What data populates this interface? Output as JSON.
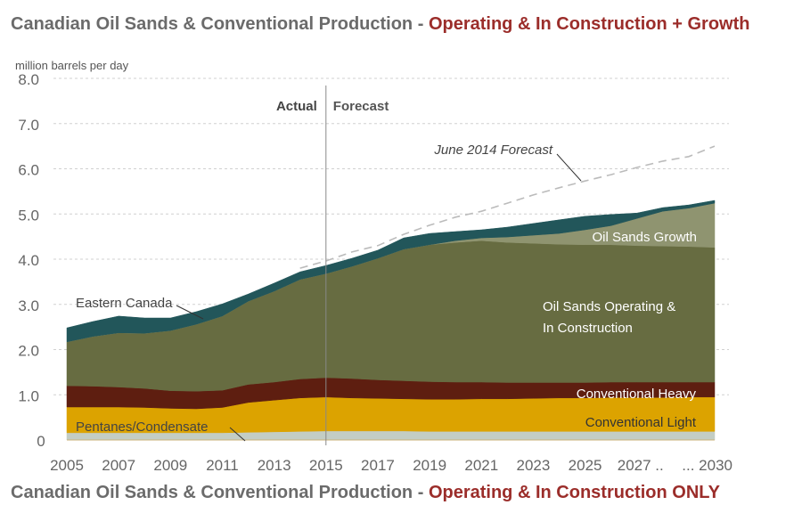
{
  "titles": {
    "top": {
      "prefix": "Canadian Oil Sands & Conventional Production - ",
      "highlight": "Operating & In Construction + Growth"
    },
    "bottom": {
      "prefix": "Canadian Oil Sands & Conventional Production - ",
      "highlight": "Operating & In Construction ONLY"
    }
  },
  "chart_data": {
    "type": "area",
    "stacked": true,
    "title": "Canadian Oil Sands & Conventional Production - Operating & In Construction + Growth",
    "ylabel": "million barrels per day",
    "xlabel": "",
    "ylim": [
      0,
      8
    ],
    "yticks": [
      "0",
      "1.0",
      "2.0",
      "3.0",
      "4.0",
      "5.0",
      "6.0",
      "7.0",
      "8.0"
    ],
    "xtick_labels": [
      "2005",
      "2007",
      "2009",
      "2011",
      "2013",
      "2015",
      "2017",
      "2019",
      "2021",
      "2023",
      "2025",
      "2027 ..",
      "... 2030"
    ],
    "grid": "horizontal dashed",
    "divider": {
      "year": 2015,
      "left_label": "Actual",
      "right_label": "Forecast"
    },
    "x": [
      2005,
      2006,
      2007,
      2008,
      2009,
      2010,
      2011,
      2012,
      2013,
      2014,
      2015,
      2016,
      2017,
      2018,
      2019,
      2020,
      2021,
      2022,
      2023,
      2024,
      2025,
      2026,
      2027,
      2028,
      2029,
      2030
    ],
    "series": [
      {
        "name": "Pentanes/Condensate",
        "color": "#c3cdc4",
        "values": [
          0.16,
          0.16,
          0.16,
          0.16,
          0.16,
          0.16,
          0.16,
          0.17,
          0.18,
          0.19,
          0.2,
          0.2,
          0.2,
          0.2,
          0.19,
          0.19,
          0.19,
          0.19,
          0.19,
          0.19,
          0.19,
          0.19,
          0.19,
          0.19,
          0.19,
          0.19
        ]
      },
      {
        "name": "Conventional Light",
        "color": "#dca300",
        "values": [
          0.57,
          0.57,
          0.57,
          0.56,
          0.54,
          0.53,
          0.56,
          0.66,
          0.7,
          0.74,
          0.75,
          0.73,
          0.72,
          0.71,
          0.71,
          0.71,
          0.72,
          0.72,
          0.73,
          0.74,
          0.74,
          0.75,
          0.75,
          0.75,
          0.76,
          0.76
        ]
      },
      {
        "name": "Conventional Heavy",
        "color": "#5e1e10",
        "values": [
          0.47,
          0.46,
          0.44,
          0.42,
          0.39,
          0.39,
          0.38,
          0.4,
          0.4,
          0.42,
          0.43,
          0.43,
          0.41,
          0.4,
          0.39,
          0.38,
          0.37,
          0.36,
          0.35,
          0.34,
          0.34,
          0.34,
          0.34,
          0.34,
          0.33,
          0.33
        ]
      },
      {
        "name": "Oil Sands Operating & In Construction",
        "color": "#676c41",
        "values": [
          0.97,
          1.1,
          1.2,
          1.22,
          1.33,
          1.48,
          1.64,
          1.84,
          2.01,
          2.2,
          2.3,
          2.48,
          2.69,
          2.91,
          3.03,
          3.09,
          3.13,
          3.1,
          3.08,
          3.06,
          3.05,
          3.04,
          3.02,
          3.01,
          3.0,
          2.98
        ]
      },
      {
        "name": "Oil Sands Growth",
        "color": "#8f9470",
        "values": [
          0,
          0,
          0,
          0,
          0,
          0,
          0,
          0,
          0,
          0,
          0,
          0,
          0,
          0,
          0,
          0.04,
          0.06,
          0.12,
          0.18,
          0.24,
          0.33,
          0.42,
          0.6,
          0.77,
          0.85,
          0.98
        ]
      },
      {
        "name": "Eastern Canada",
        "color": "#22565a",
        "values": [
          0.31,
          0.33,
          0.37,
          0.34,
          0.28,
          0.28,
          0.27,
          0.16,
          0.18,
          0.17,
          0.18,
          0.18,
          0.18,
          0.25,
          0.25,
          0.2,
          0.18,
          0.22,
          0.26,
          0.3,
          0.3,
          0.25,
          0.12,
          0.08,
          0.07,
          0.06
        ]
      }
    ],
    "reference_line": {
      "name": "June 2014 Forecast",
      "style": "dashed",
      "color": "#bbbbbb",
      "x": [
        2014,
        2015,
        2016,
        2017,
        2018,
        2019,
        2020,
        2021,
        2022,
        2023,
        2024,
        2025,
        2026,
        2027,
        2028,
        2029,
        2030
      ],
      "values": [
        3.8,
        3.96,
        4.16,
        4.3,
        4.55,
        4.75,
        4.93,
        5.06,
        5.24,
        5.42,
        5.58,
        5.73,
        5.87,
        6.03,
        6.17,
        6.27,
        6.5
      ]
    },
    "annotations": [
      {
        "text": "Eastern Canada",
        "color": "#444444"
      },
      {
        "text": "Pentanes/Condensate",
        "color": "#444444"
      },
      {
        "text": "June 2014 Forecast",
        "color": "#444444",
        "italic": true
      },
      {
        "text": "Oil Sands Growth",
        "color": "#ffffff"
      },
      {
        "text": "Oil Sands Operating &",
        "color": "#ffffff"
      },
      {
        "text": "In Construction",
        "color": "#ffffff"
      },
      {
        "text": "Conventional Heavy",
        "color": "#ffffff"
      },
      {
        "text": "Conventional Light",
        "color": "#333333"
      }
    ]
  }
}
